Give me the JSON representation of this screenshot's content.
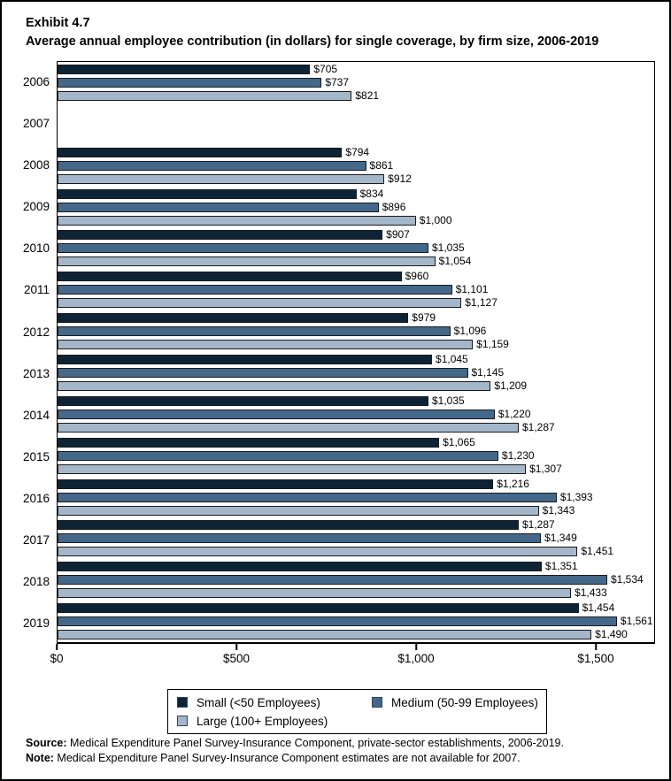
{
  "title": {
    "exhibit": "Exhibit 4.7",
    "subtitle": "Average annual employee contribution (in dollars) for single coverage, by firm size, 2006-2019"
  },
  "colors": {
    "small": "#0d2436",
    "medium": "#43688a",
    "large": "#a3b6ca",
    "bar_border": "#1a1a1a"
  },
  "chart_data": {
    "type": "bar",
    "orientation": "horizontal",
    "title": "Average annual employee contribution (in dollars) for single coverage, by firm size, 2006-2019",
    "categories": [
      "2006",
      "2007",
      "2008",
      "2009",
      "2010",
      "2011",
      "2012",
      "2013",
      "2014",
      "2015",
      "2016",
      "2017",
      "2018",
      "2019"
    ],
    "series": [
      {
        "name": "Small (<50 Employees)",
        "color_key": "small",
        "values": [
          705,
          null,
          794,
          834,
          907,
          960,
          979,
          1045,
          1035,
          1065,
          1216,
          1287,
          1351,
          1454
        ]
      },
      {
        "name": "Medium (50-99 Employees)",
        "color_key": "medium",
        "values": [
          737,
          null,
          861,
          896,
          1035,
          1101,
          1096,
          1145,
          1220,
          1230,
          1393,
          1349,
          1534,
          1561
        ]
      },
      {
        "name": "Large (100+ Employees)",
        "color_key": "large",
        "values": [
          821,
          null,
          912,
          1000,
          1054,
          1127,
          1159,
          1209,
          1287,
          1307,
          1343,
          1451,
          1433,
          1490
        ]
      }
    ],
    "xlim": [
      0,
      1665
    ],
    "x_ticks": [
      {
        "value": 0,
        "label": "$0"
      },
      {
        "value": 500,
        "label": "$500"
      },
      {
        "value": 1000,
        "label": "$1,000"
      },
      {
        "value": 1500,
        "label": "$1,500"
      }
    ],
    "grid": false,
    "value_labels": "outside-end, $ with thousands separator",
    "legend_position": "bottom",
    "note": "No bars for 2007 (data not available)"
  },
  "legend": {
    "items": [
      {
        "label": "Small (<50 Employees)",
        "color_key": "small"
      },
      {
        "label": "Medium (50-99 Employees)",
        "color_key": "medium"
      },
      {
        "label": "Large (100+ Employees)",
        "color_key": "large"
      }
    ]
  },
  "footer": {
    "source_label": "Source:",
    "source_text": " Medical Expenditure Panel Survey-Insurance Component, private-sector establishments, 2006-2019.",
    "note_label": "Note:",
    "note_text": " Medical Expenditure Panel Survey-Insurance Component estimates are not available for 2007."
  }
}
